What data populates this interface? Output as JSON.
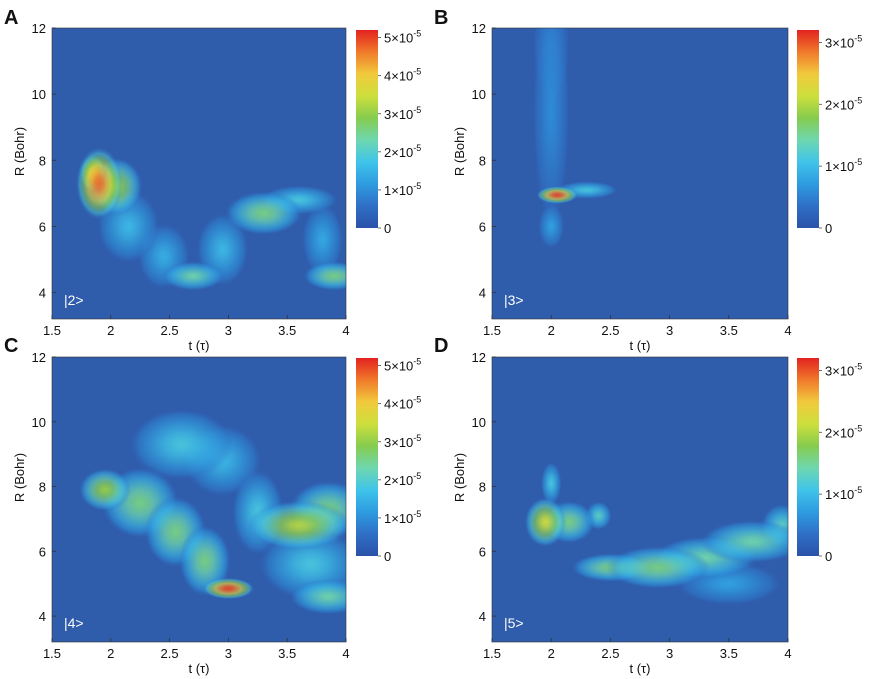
{
  "chart_data": [
    {
      "type": "heatmap",
      "panel_label": "A",
      "state_label": "|2>",
      "xlabel": "t (τ)",
      "ylabel": "R (Bohr)",
      "xlim": [
        1.5,
        4
      ],
      "ylim": [
        3.2,
        12
      ],
      "x_ticks": [
        "1.5",
        "2",
        "2.5",
        "3",
        "3.5",
        "4"
      ],
      "y_ticks": [
        "4",
        "6",
        "8",
        "10",
        "12"
      ],
      "colorbar": {
        "min": 0,
        "max": 5.2e-05,
        "tick_values": [
          0,
          1e-05,
          2e-05,
          3e-05,
          4e-05,
          5e-05
        ],
        "tick_labels": [
          "0",
          "1×10",
          "2×10",
          "3×10",
          "4×10",
          "5×10"
        ],
        "exponent": "-5"
      },
      "features": [
        {
          "t": 1.9,
          "R": 7.3,
          "intensity": 0.9,
          "sigma_t": 0.09,
          "sigma_R": 0.5
        },
        {
          "t": 1.85,
          "R": 7.6,
          "intensity": 0.75,
          "sigma_t": 0.05,
          "sigma_R": 0.25
        },
        {
          "t": 2.05,
          "R": 7.2,
          "intensity": 0.55,
          "sigma_t": 0.1,
          "sigma_R": 0.4
        },
        {
          "t": 2.15,
          "R": 6.0,
          "intensity": 0.25,
          "sigma_t": 0.12,
          "sigma_R": 0.5
        },
        {
          "t": 2.45,
          "R": 5.1,
          "intensity": 0.22,
          "sigma_t": 0.1,
          "sigma_R": 0.45
        },
        {
          "t": 2.7,
          "R": 4.5,
          "intensity": 0.4,
          "sigma_t": 0.12,
          "sigma_R": 0.2
        },
        {
          "t": 2.95,
          "R": 5.3,
          "intensity": 0.25,
          "sigma_t": 0.1,
          "sigma_R": 0.5
        },
        {
          "t": 3.3,
          "R": 6.4,
          "intensity": 0.45,
          "sigma_t": 0.15,
          "sigma_R": 0.3
        },
        {
          "t": 3.6,
          "R": 6.8,
          "intensity": 0.3,
          "sigma_t": 0.15,
          "sigma_R": 0.2
        },
        {
          "t": 3.9,
          "R": 4.5,
          "intensity": 0.45,
          "sigma_t": 0.12,
          "sigma_R": 0.2
        },
        {
          "t": 3.8,
          "R": 5.6,
          "intensity": 0.2,
          "sigma_t": 0.08,
          "sigma_R": 0.5
        }
      ]
    },
    {
      "type": "heatmap",
      "panel_label": "B",
      "state_label": "|3>",
      "xlabel": "t (τ)",
      "ylabel": "R (Bohr)",
      "xlim": [
        1.5,
        4
      ],
      "ylim": [
        3.2,
        12
      ],
      "x_ticks": [
        "1.5",
        "2",
        "2.5",
        "3",
        "3.5",
        "4"
      ],
      "y_ticks": [
        "4",
        "6",
        "8",
        "10",
        "12"
      ],
      "colorbar": {
        "min": 0,
        "max": 3.2e-05,
        "tick_values": [
          0,
          1e-05,
          2e-05,
          3e-05
        ],
        "tick_labels": [
          "0",
          "1×10",
          "2×10",
          "3×10"
        ],
        "exponent": "-5"
      },
      "features": [
        {
          "t": 2.05,
          "R": 6.95,
          "intensity": 0.95,
          "sigma_t": 0.08,
          "sigma_R": 0.12
        },
        {
          "t": 2.3,
          "R": 7.1,
          "intensity": 0.3,
          "sigma_t": 0.12,
          "sigma_R": 0.12
        },
        {
          "t": 2.0,
          "R": 6.0,
          "intensity": 0.18,
          "sigma_t": 0.05,
          "sigma_R": 0.3
        },
        {
          "t": 2.0,
          "R": 9.5,
          "intensity": 0.12,
          "sigma_t": 0.07,
          "sigma_R": 1.6
        },
        {
          "t": 2.0,
          "R": 11.5,
          "intensity": 0.1,
          "sigma_t": 0.07,
          "sigma_R": 0.8
        }
      ]
    },
    {
      "type": "heatmap",
      "panel_label": "C",
      "state_label": "|4>",
      "xlabel": "t (τ)",
      "ylabel": "R (Bohr)",
      "xlim": [
        1.5,
        4
      ],
      "ylim": [
        3.2,
        12
      ],
      "x_ticks": [
        "1.5",
        "2",
        "2.5",
        "3",
        "3.5",
        "4"
      ],
      "y_ticks": [
        "4",
        "6",
        "8",
        "10",
        "12"
      ],
      "colorbar": {
        "min": 0,
        "max": 5.2e-05,
        "tick_values": [
          0,
          1e-05,
          2e-05,
          3e-05,
          4e-05,
          5e-05
        ],
        "tick_labels": [
          "0",
          "1×10",
          "2×10",
          "3×10",
          "4×10",
          "5×10"
        ],
        "exponent": "-5"
      },
      "features": [
        {
          "t": 1.95,
          "R": 7.9,
          "intensity": 0.55,
          "sigma_t": 0.1,
          "sigma_R": 0.3
        },
        {
          "t": 2.25,
          "R": 7.5,
          "intensity": 0.45,
          "sigma_t": 0.15,
          "sigma_R": 0.5
        },
        {
          "t": 2.55,
          "R": 6.6,
          "intensity": 0.45,
          "sigma_t": 0.12,
          "sigma_R": 0.5
        },
        {
          "t": 2.8,
          "R": 5.7,
          "intensity": 0.45,
          "sigma_t": 0.1,
          "sigma_R": 0.5
        },
        {
          "t": 3.0,
          "R": 4.85,
          "intensity": 0.95,
          "sigma_t": 0.1,
          "sigma_R": 0.15
        },
        {
          "t": 2.6,
          "R": 9.3,
          "intensity": 0.3,
          "sigma_t": 0.2,
          "sigma_R": 0.5
        },
        {
          "t": 2.95,
          "R": 8.8,
          "intensity": 0.25,
          "sigma_t": 0.15,
          "sigma_R": 0.5
        },
        {
          "t": 3.25,
          "R": 7.2,
          "intensity": 0.3,
          "sigma_t": 0.1,
          "sigma_R": 0.6
        },
        {
          "t": 3.6,
          "R": 6.8,
          "intensity": 0.6,
          "sigma_t": 0.2,
          "sigma_R": 0.35
        },
        {
          "t": 3.85,
          "R": 7.3,
          "intensity": 0.45,
          "sigma_t": 0.15,
          "sigma_R": 0.4
        },
        {
          "t": 3.85,
          "R": 4.6,
          "intensity": 0.4,
          "sigma_t": 0.15,
          "sigma_R": 0.25
        },
        {
          "t": 3.7,
          "R": 5.6,
          "intensity": 0.3,
          "sigma_t": 0.2,
          "sigma_R": 0.5
        }
      ]
    },
    {
      "type": "heatmap",
      "panel_label": "D",
      "state_label": "|5>",
      "xlabel": "t (τ)",
      "ylabel": "R (Bohr)",
      "xlim": [
        1.5,
        4
      ],
      "ylim": [
        3.2,
        12
      ],
      "x_ticks": [
        "1.5",
        "2",
        "2.5",
        "3",
        "3.5",
        "4"
      ],
      "y_ticks": [
        "4",
        "6",
        "8",
        "10",
        "12"
      ],
      "colorbar": {
        "min": 0,
        "max": 3.2e-05,
        "tick_values": [
          0,
          1e-05,
          2e-05,
          3e-05
        ],
        "tick_labels": [
          "0",
          "1×10",
          "2×10",
          "3×10"
        ],
        "exponent": "-5"
      },
      "features": [
        {
          "t": 1.95,
          "R": 6.9,
          "intensity": 0.65,
          "sigma_t": 0.08,
          "sigma_R": 0.35
        },
        {
          "t": 2.15,
          "R": 6.9,
          "intensity": 0.45,
          "sigma_t": 0.1,
          "sigma_R": 0.3
        },
        {
          "t": 2.4,
          "R": 7.1,
          "intensity": 0.35,
          "sigma_t": 0.05,
          "sigma_R": 0.2
        },
        {
          "t": 2.0,
          "R": 8.1,
          "intensity": 0.3,
          "sigma_t": 0.04,
          "sigma_R": 0.3
        },
        {
          "t": 2.5,
          "R": 5.5,
          "intensity": 0.45,
          "sigma_t": 0.15,
          "sigma_R": 0.2
        },
        {
          "t": 2.9,
          "R": 5.5,
          "intensity": 0.45,
          "sigma_t": 0.2,
          "sigma_R": 0.3
        },
        {
          "t": 3.3,
          "R": 5.8,
          "intensity": 0.4,
          "sigma_t": 0.2,
          "sigma_R": 0.3
        },
        {
          "t": 3.7,
          "R": 6.3,
          "intensity": 0.4,
          "sigma_t": 0.2,
          "sigma_R": 0.3
        },
        {
          "t": 3.95,
          "R": 6.8,
          "intensity": 0.35,
          "sigma_t": 0.08,
          "sigma_R": 0.3
        },
        {
          "t": 3.5,
          "R": 5.0,
          "intensity": 0.18,
          "sigma_t": 0.2,
          "sigma_R": 0.3
        }
      ]
    }
  ],
  "colors": {
    "background_blue": "#2f5cab",
    "colormap": [
      "#2a52a8",
      "#2f6fc6",
      "#2e9be0",
      "#3fc4ea",
      "#6ed7b0",
      "#86cc4e",
      "#cddf3c",
      "#f1c93c",
      "#f07a2b",
      "#e2231f"
    ],
    "text": "#111111",
    "inset_label": "#ffffff"
  }
}
